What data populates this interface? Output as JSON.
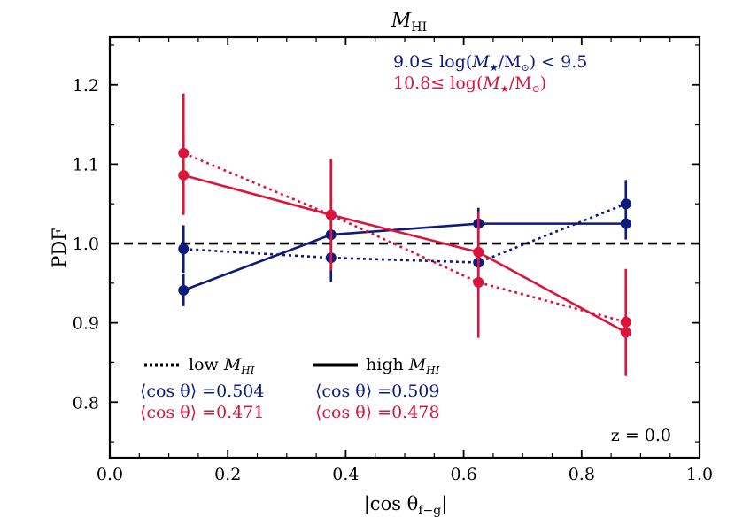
{
  "chart_data": {
    "type": "line",
    "title": "M_HI",
    "title_main": "M",
    "title_sub": "HI",
    "xlabel": "|cos θ_f−g|",
    "xlabel_main": "|cos θ",
    "xlabel_sub": "f−g",
    "xlabel_end": "|",
    "ylabel": "PDF",
    "xlim": [
      0.0,
      1.0
    ],
    "ylim": [
      0.73,
      1.26
    ],
    "xticks": [
      0.0,
      0.2,
      0.4,
      0.6,
      0.8,
      1.0
    ],
    "xtick_labels": [
      "0.0",
      "0.2",
      "0.4",
      "0.6",
      "0.8",
      "1.0"
    ],
    "yticks": [
      0.8,
      0.9,
      1.0,
      1.1,
      1.2
    ],
    "ytick_labels": [
      "0.8",
      "0.9",
      "1.0",
      "1.1",
      "1.2"
    ],
    "reference_line": {
      "y": 1.0,
      "style": "dashed",
      "color": "#000000"
    },
    "x": [
      0.125,
      0.375,
      0.625,
      0.875
    ],
    "series": [
      {
        "name": "low M_HI, 9.0 ≤ log(M★/M⊙) < 9.5",
        "group": "low",
        "color": "#0d1a80",
        "style": "dotted",
        "values": [
          0.993,
          0.982,
          0.976,
          1.05
        ],
        "yerr": [
          0.03,
          0.03,
          0.025,
          0.03
        ]
      },
      {
        "name": "high M_HI, 9.0 ≤ log(M★/M⊙) < 9.5",
        "group": "high",
        "color": "#0d1a80",
        "style": "solid",
        "values": [
          0.941,
          1.011,
          1.025,
          1.025
        ],
        "yerr": [
          0.02,
          0.02,
          0.02,
          0.02
        ]
      },
      {
        "name": "low M_HI, 10.8 ≤ log(M★/M⊙)",
        "group": "low",
        "color": "#dc143c",
        "style": "dotted",
        "values": [
          1.114,
          1.036,
          0.951,
          0.901
        ],
        "yerr": [
          0.075,
          0.07,
          0.07,
          0.067
        ]
      },
      {
        "name": "high M_HI, 10.8 ≤ log(M★/M⊙)",
        "group": "high",
        "color": "#dc143c",
        "style": "solid",
        "values": [
          1.086,
          1.036,
          0.989,
          0.888
        ],
        "yerr": [
          0.05,
          0.07,
          0.05,
          0.055
        ]
      }
    ],
    "mass_bins": [
      {
        "pre": "9.0≤ log(",
        "m": "M",
        "star": "★",
        "slash": "/M",
        "sun": "⊙",
        "post": ") < 9.5",
        "color": "#0d1a80"
      },
      {
        "pre": "10.8≤ log(",
        "m": "M",
        "star": "★",
        "slash": "/M",
        "sun": "⊙",
        "post": ")",
        "color": "#dc143c"
      }
    ],
    "legend": {
      "low_text": "low ",
      "low_m": "M",
      "low_sub": "HI",
      "high_text": "high ",
      "high_m": "M",
      "high_sub": "HI"
    },
    "mean_cos_label": "⟨cos θ⟩ =",
    "mean_cos": [
      {
        "group": "low",
        "value": "0.504",
        "color": "#0d1a80"
      },
      {
        "group": "low",
        "value": "0.471",
        "color": "#dc143c"
      },
      {
        "group": "high",
        "value": "0.509",
        "color": "#0d1a80"
      },
      {
        "group": "high",
        "value": "0.478",
        "color": "#dc143c"
      }
    ],
    "redshift_label": "z = 0.0"
  }
}
